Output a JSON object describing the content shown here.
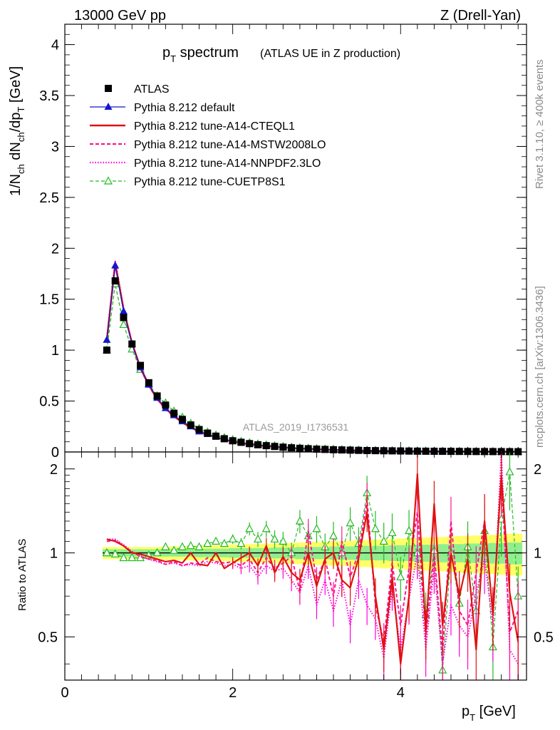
{
  "header": {
    "energy": "13000 GeV pp",
    "process": "Z (Drell-Yan)"
  },
  "side_labels": {
    "rivet": "Rivet 3.1.10, ≥ 400k events",
    "mcplots": "mcplots.cern.ch [arXiv:1306.3436]"
  },
  "watermark": "ATLAS_2019_I1736531",
  "colors": {
    "atlas": "#000000",
    "default": "#1515d0",
    "cteq": "#e01010",
    "mstw": "#ff1493",
    "nnpdf": "#ff00dd",
    "cuetp": "#22bb22",
    "band_inner": "#90ee90",
    "band_outer": "#ffff66"
  },
  "chart_data": [
    {
      "id": "main",
      "type": "line",
      "title_main": "p",
      "title_sub": "T",
      "title_rest": " spectrum",
      "title_paren": "(ATLAS UE in Z production)",
      "ylabel": "1/N_ch dN_ch/dp_T [GeV]",
      "xlim": [
        0,
        5.5
      ],
      "ylim": [
        0,
        4.2
      ],
      "yticks": [
        0,
        0.5,
        1,
        1.5,
        2,
        2.5,
        3,
        3.5,
        4
      ],
      "ytick_labels": [
        "0",
        "0.5",
        "1",
        "1.5",
        "2",
        "2.5",
        "3",
        "3.5",
        "4"
      ],
      "x": [
        0.5,
        0.6,
        0.7,
        0.8,
        0.9,
        1.0,
        1.1,
        1.2,
        1.3,
        1.4,
        1.5,
        1.6,
        1.7,
        1.8,
        1.9,
        2.0,
        2.1,
        2.2,
        2.3,
        2.4,
        2.5,
        2.6,
        2.7,
        2.8,
        2.9,
        3.0,
        3.1,
        3.2,
        3.3,
        3.4,
        3.5,
        3.6,
        3.7,
        3.8,
        3.9,
        4.0,
        4.1,
        4.2,
        4.3,
        4.4,
        4.5,
        4.6,
        4.7,
        4.8,
        4.9,
        5.0,
        5.1,
        5.2,
        5.3,
        5.4
      ],
      "legend_placement": "top-left",
      "series": [
        {
          "name": "ATLAS",
          "style": "data",
          "values": [
            1.0,
            1.68,
            1.32,
            1.06,
            0.85,
            0.68,
            0.55,
            0.46,
            0.38,
            0.32,
            0.265,
            0.22,
            0.185,
            0.155,
            0.13,
            0.11,
            0.095,
            0.082,
            0.071,
            0.062,
            0.054,
            0.047,
            0.041,
            0.036,
            0.032,
            0.028,
            0.025,
            0.022,
            0.02,
            0.018,
            0.016,
            0.014,
            0.013,
            0.012,
            0.011,
            0.01,
            0.009,
            0.008,
            0.0075,
            0.007,
            0.0065,
            0.006,
            0.0055,
            0.005,
            0.0046,
            0.0042,
            0.0039,
            0.0036,
            0.0033,
            0.003
          ]
        },
        {
          "name": "Pythia 8.212 default",
          "style": "default",
          "values": [
            1.1,
            1.83,
            1.38,
            1.06,
            0.83,
            0.66,
            0.53,
            0.43,
            0.36,
            0.3,
            0.25,
            0.2,
            0.175,
            0.15,
            0.125,
            0.105,
            0.09,
            0.079,
            0.068,
            0.06,
            0.052,
            0.045,
            0.039,
            0.035,
            0.031,
            0.027,
            0.024,
            0.021,
            0.019,
            0.017,
            0.015,
            0.013,
            0.012,
            0.011,
            0.01,
            0.009,
            0.008,
            0.0075,
            0.007,
            0.0065,
            0.006,
            0.0055,
            0.005,
            0.0046,
            0.0042,
            0.0039,
            0.0036,
            0.0033,
            0.003,
            0.0028
          ]
        },
        {
          "name": "Pythia 8.212 tune-A14-CTEQL1",
          "style": "cteq",
          "values": [
            1.1,
            1.85,
            1.4,
            1.07,
            0.83,
            0.66,
            0.52,
            0.43,
            0.35,
            0.29,
            0.24,
            0.2,
            0.17,
            0.145,
            0.122,
            0.103,
            0.088,
            0.076,
            0.066,
            0.058,
            0.05,
            0.044,
            0.038,
            0.034,
            0.03,
            0.026,
            0.023,
            0.02,
            0.018,
            0.016,
            0.014,
            0.013,
            0.012,
            0.011,
            0.01,
            0.009,
            0.008,
            0.0072,
            0.0066,
            0.006,
            0.0055,
            0.005,
            0.0046,
            0.0042,
            0.0039,
            0.0036,
            0.0033,
            0.003,
            0.0028,
            0.0025
          ]
        },
        {
          "name": "Pythia 8.212 tune-A14-MSTW2008LO",
          "style": "mstw",
          "values": [
            1.1,
            1.86,
            1.4,
            1.07,
            0.82,
            0.65,
            0.52,
            0.42,
            0.35,
            0.29,
            0.24,
            0.2,
            0.17,
            0.144,
            0.12,
            0.102,
            0.087,
            0.075,
            0.065,
            0.057,
            0.05,
            0.043,
            0.038,
            0.033,
            0.029,
            0.026,
            0.023,
            0.02,
            0.018,
            0.016,
            0.014,
            0.013,
            0.011,
            0.01,
            0.009,
            0.0085,
            0.0078,
            0.007,
            0.0065,
            0.006,
            0.0055,
            0.005,
            0.0046,
            0.0042,
            0.0039,
            0.0036,
            0.0033,
            0.003,
            0.0028,
            0.0025
          ]
        },
        {
          "name": "Pythia 8.212 tune-A14-NNPDF2.3LO",
          "style": "nnpdf",
          "values": [
            1.11,
            1.88,
            1.41,
            1.07,
            0.82,
            0.65,
            0.52,
            0.42,
            0.35,
            0.29,
            0.24,
            0.2,
            0.17,
            0.143,
            0.12,
            0.101,
            0.087,
            0.074,
            0.065,
            0.057,
            0.049,
            0.043,
            0.037,
            0.033,
            0.029,
            0.025,
            0.022,
            0.02,
            0.018,
            0.016,
            0.014,
            0.012,
            0.011,
            0.01,
            0.009,
            0.0085,
            0.0078,
            0.007,
            0.0064,
            0.006,
            0.0055,
            0.005,
            0.0046,
            0.0042,
            0.0039,
            0.0036,
            0.0033,
            0.003,
            0.0028,
            0.0025
          ]
        },
        {
          "name": "Pythia 8.212 tune-CUETP8S1",
          "style": "cuetp",
          "values": [
            1.0,
            1.65,
            1.25,
            1.01,
            0.81,
            0.67,
            0.55,
            0.48,
            0.4,
            0.34,
            0.28,
            0.23,
            0.195,
            0.165,
            0.14,
            0.12,
            0.103,
            0.09,
            0.078,
            0.068,
            0.06,
            0.052,
            0.046,
            0.04,
            0.036,
            0.032,
            0.028,
            0.025,
            0.022,
            0.02,
            0.018,
            0.016,
            0.014,
            0.013,
            0.012,
            0.011,
            0.01,
            0.009,
            0.0085,
            0.008,
            0.0072,
            0.0065,
            0.006,
            0.0055,
            0.005,
            0.0046,
            0.0042,
            0.0039,
            0.0036,
            0.0033
          ]
        }
      ]
    },
    {
      "id": "ratio",
      "type": "line",
      "ylabel": "Ratio to ATLAS",
      "xlabel": "p_T [GeV]",
      "xlim": [
        0,
        5.5
      ],
      "ylim": [
        0.35,
        2.3
      ],
      "yscale": "log",
      "xticks": [
        0,
        2,
        4
      ],
      "xtick_labels": [
        "0",
        "2",
        "4"
      ],
      "yticks": [
        0.5,
        1,
        2
      ],
      "ytick_labels": [
        "0.5",
        "1",
        "2"
      ],
      "x": [
        0.5,
        0.6,
        0.7,
        0.8,
        0.9,
        1.0,
        1.1,
        1.2,
        1.3,
        1.4,
        1.5,
        1.6,
        1.7,
        1.8,
        1.9,
        2.0,
        2.1,
        2.2,
        2.3,
        2.4,
        2.5,
        2.6,
        2.7,
        2.8,
        2.9,
        3.0,
        3.1,
        3.2,
        3.3,
        3.4,
        3.5,
        3.6,
        3.7,
        3.8,
        3.9,
        4.0,
        4.1,
        4.2,
        4.3,
        4.4,
        4.5,
        4.6,
        4.7,
        4.8,
        4.9,
        5.0,
        5.1,
        5.2,
        5.3,
        5.4
      ],
      "band_inner": [
        0.03,
        0.03,
        0.03,
        0.03,
        0.03,
        0.03,
        0.03,
        0.03,
        0.03,
        0.03,
        0.03,
        0.035,
        0.035,
        0.035,
        0.035,
        0.04,
        0.04,
        0.04,
        0.04,
        0.04,
        0.045,
        0.045,
        0.045,
        0.05,
        0.05,
        0.05,
        0.05,
        0.055,
        0.055,
        0.055,
        0.06,
        0.06,
        0.06,
        0.06,
        0.065,
        0.065,
        0.065,
        0.07,
        0.07,
        0.07,
        0.075,
        0.075,
        0.075,
        0.08,
        0.08,
        0.08,
        0.085,
        0.085,
        0.09,
        0.09
      ],
      "band_outer": [
        0.05,
        0.05,
        0.05,
        0.05,
        0.05,
        0.05,
        0.05,
        0.055,
        0.055,
        0.055,
        0.06,
        0.06,
        0.06,
        0.065,
        0.065,
        0.07,
        0.07,
        0.075,
        0.075,
        0.08,
        0.08,
        0.085,
        0.085,
        0.09,
        0.09,
        0.095,
        0.095,
        0.1,
        0.1,
        0.105,
        0.11,
        0.11,
        0.115,
        0.12,
        0.12,
        0.125,
        0.13,
        0.13,
        0.135,
        0.14,
        0.14,
        0.145,
        0.15,
        0.15,
        0.155,
        0.16,
        0.16,
        0.165,
        0.17,
        0.17
      ],
      "series": [
        {
          "name": "Pythia 8.212 default",
          "style": "default",
          "values": [
            1.1,
            1.09,
            1.05,
            1.0,
            0.98,
            0.97,
            0.96,
            0.94,
            0.95,
            0.94,
            0.96,
            0.97,
            1.0,
            0.97,
            0.96,
            0.95,
            1.1,
            1.05,
            0.93,
            0.97,
            0.9,
            1.0,
            0.93,
            0.75,
            0.92,
            0.66,
            0.8,
            0.68,
            0.9,
            0.8,
            0.62,
            1.62,
            0.74,
            0.56,
            0.72,
            0.5,
            0.82,
            1.0,
            0.52,
            0.95,
            0.4,
            1.05,
            0.52,
            0.4,
            0.62,
            1.5,
            0.64,
            2.1,
            0.8,
            0.5
          ]
        },
        {
          "name": "Pythia 8.212 tune-A14-CTEQL1",
          "style": "cteq",
          "values": [
            1.12,
            1.1,
            1.06,
            1.0,
            0.99,
            0.97,
            0.95,
            0.93,
            0.94,
            0.92,
            1.0,
            0.91,
            0.9,
            1.0,
            0.88,
            0.92,
            0.96,
            1.0,
            0.9,
            1.06,
            0.85,
            0.97,
            0.85,
            0.8,
            1.0,
            0.76,
            0.95,
            1.0,
            0.8,
            0.75,
            0.96,
            1.4,
            0.7,
            0.45,
            0.82,
            0.4,
            0.7,
            1.92,
            0.52,
            1.5,
            0.55,
            1.0,
            0.7,
            0.95,
            0.45,
            1.3,
            0.6,
            1.9,
            0.72,
            0.48
          ]
        },
        {
          "name": "Pythia 8.212 tune-A14-MSTW2008LO",
          "style": "mstw",
          "values": [
            1.1,
            1.11,
            1.06,
            1.01,
            0.97,
            0.95,
            0.94,
            0.91,
            0.93,
            0.9,
            0.92,
            0.91,
            0.96,
            0.93,
            0.92,
            0.93,
            0.9,
            0.95,
            0.85,
            0.96,
            0.88,
            0.92,
            0.97,
            0.73,
            1.2,
            0.8,
            0.95,
            0.7,
            1.1,
            0.82,
            1.0,
            1.55,
            0.65,
            0.48,
            0.92,
            0.55,
            0.88,
            1.4,
            0.5,
            1.0,
            0.44,
            1.3,
            0.62,
            0.55,
            0.85,
            1.3,
            0.6,
            1.85,
            0.52,
            0.62
          ]
        },
        {
          "name": "Pythia 8.212 tune-A14-NNPDF2.3LO",
          "style": "nnpdf",
          "values": [
            1.12,
            1.12,
            1.07,
            1.01,
            0.97,
            0.95,
            0.93,
            0.91,
            0.92,
            0.9,
            0.91,
            0.9,
            0.93,
            0.92,
            0.9,
            0.91,
            0.88,
            0.9,
            0.82,
            0.9,
            0.86,
            0.88,
            0.8,
            0.72,
            0.9,
            0.65,
            0.8,
            0.62,
            0.8,
            0.55,
            0.8,
            0.65,
            0.58,
            0.42,
            0.75,
            0.45,
            0.68,
            1.0,
            0.45,
            0.9,
            0.4,
            0.65,
            0.55,
            0.5,
            0.72,
            0.95,
            0.55,
            2.35,
            0.45,
            0.4
          ]
        },
        {
          "name": "Pythia 8.212 tune-CUETP8S1",
          "style": "cuetp",
          "values": [
            1.0,
            0.99,
            0.96,
            0.96,
            0.96,
            0.98,
            1.0,
            1.05,
            1.02,
            1.05,
            1.06,
            1.05,
            1.08,
            1.1,
            1.08,
            1.12,
            1.08,
            1.22,
            1.12,
            1.22,
            1.12,
            1.1,
            1.0,
            1.3,
            1.15,
            1.22,
            1.05,
            1.15,
            1.0,
            1.28,
            1.08,
            1.64,
            1.22,
            1.1,
            1.18,
            0.82,
            1.2,
            1.0,
            0.6,
            1.02,
            0.38,
            1.0,
            0.66,
            1.05,
            0.62,
            1.2,
            0.46,
            1.32,
            1.95,
            0.7
          ]
        }
      ]
    }
  ]
}
